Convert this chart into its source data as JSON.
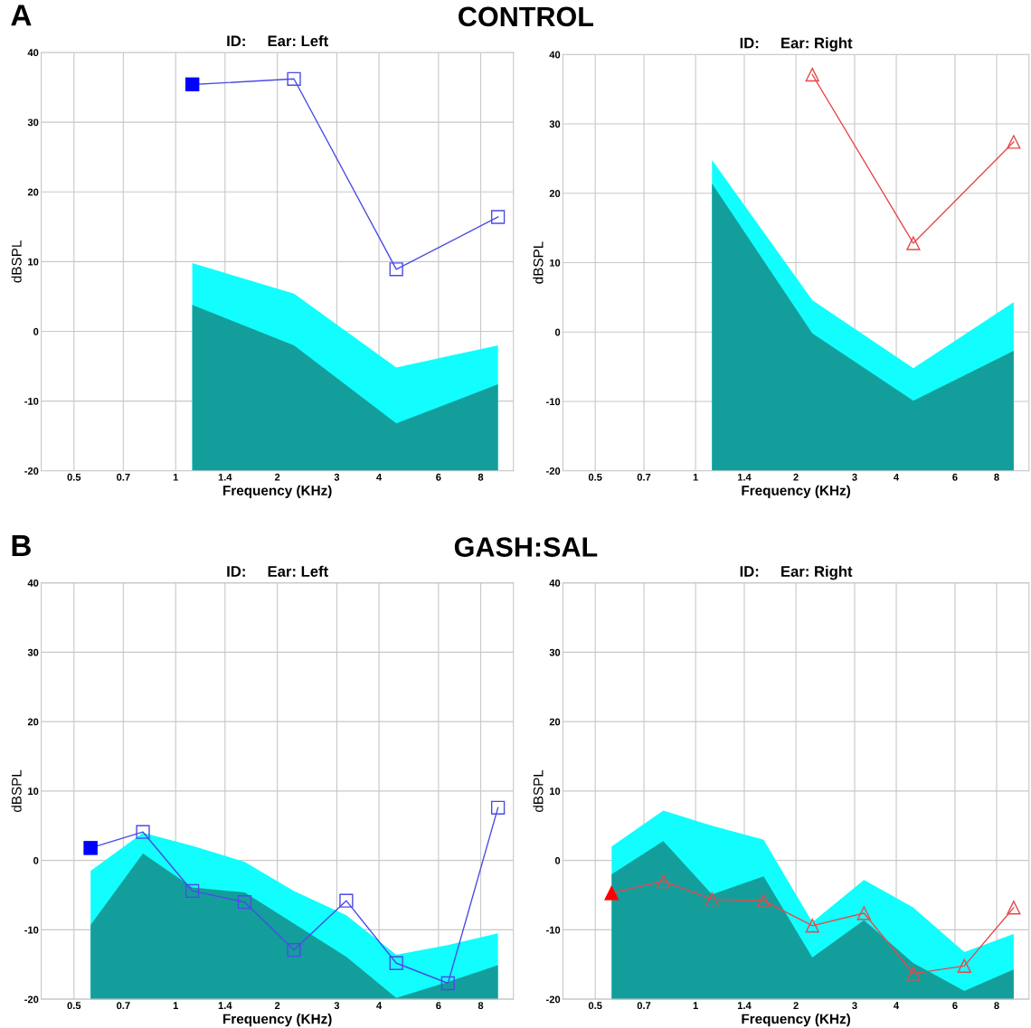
{
  "chart_data": [
    {
      "type": "area",
      "title": "ID:     Ear: Left",
      "xlabel": "Frequency (KHz)",
      "ylabel": "dBSPL",
      "annotations": [
        "A",
        "CONTROL"
      ],
      "x": [
        1.12,
        2.24,
        4.5,
        9
      ],
      "log": "x",
      "grid": true,
      "xlim": [
        0.4,
        10
      ],
      "xticks": [
        0.5,
        0.7,
        1,
        1.4,
        2,
        3,
        4,
        6,
        8
      ],
      "ylim": [
        -20,
        40
      ],
      "yticks": [
        -20,
        -10,
        0,
        10,
        20,
        30,
        40
      ],
      "series": [
        {
          "color": "#12fdfd",
          "values": [
            9.8,
            5.4,
            -5.2,
            -2
          ]
        },
        {
          "color": "#139e9c",
          "values": [
            3.8,
            -2,
            -13.2,
            -7.6
          ]
        },
        {
          "type": "line",
          "color": "#4b4be6",
          "marker": "square",
          "values": [
            35.4,
            36.2,
            8.9,
            16.4
          ]
        },
        {
          "type": "scatter",
          "color": "#0000ff",
          "marker": "square",
          "values": [
            35.4,
            null,
            null,
            null
          ]
        }
      ]
    },
    {
      "type": "area",
      "title": "ID:     Ear: Right",
      "xlabel": "Frequency (KHz)",
      "ylabel": "dBSPL",
      "x": [
        1.12,
        2.24,
        4.5,
        9
      ],
      "log": "x",
      "grid": true,
      "xlim": [
        0.4,
        10
      ],
      "xticks": [
        0.5,
        0.7,
        1,
        1.4,
        2,
        3,
        4,
        6,
        8
      ],
      "ylim": [
        -20,
        40
      ],
      "yticks": [
        -20,
        -10,
        0,
        10,
        20,
        30,
        40
      ],
      "series": [
        {
          "color": "#12fdfd",
          "values": [
            24.8,
            4.6,
            -5.2,
            4.3
          ]
        },
        {
          "color": "#139e9c",
          "values": [
            21.4,
            -0.2,
            -9.9,
            -2.7
          ]
        },
        {
          "type": "line",
          "color": "#e8484a",
          "marker": "triangle",
          "values": [
            null,
            37.1,
            12.8,
            27.4
          ]
        }
      ]
    },
    {
      "type": "area",
      "title": "ID:     Ear: Left",
      "xlabel": "Frequency (KHz)",
      "ylabel": "dBSPL",
      "annotations": [
        "B",
        "GASH:SAL"
      ],
      "x": [
        0.56,
        0.8,
        1.12,
        1.6,
        2.24,
        3.2,
        4.5,
        6.4,
        9
      ],
      "log": "x",
      "grid": true,
      "xlim": [
        0.4,
        10
      ],
      "xticks": [
        0.5,
        0.7,
        1,
        1.4,
        2,
        3,
        4,
        6,
        8
      ],
      "ylim": [
        -20,
        40
      ],
      "yticks": [
        -20,
        -10,
        0,
        10,
        20,
        30,
        40
      ],
      "series": [
        {
          "color": "#12fdfd",
          "values": [
            -1.5,
            4.0,
            2.1,
            -0.2,
            -4.4,
            -7.9,
            -13.6,
            -12.2,
            -10.5
          ]
        },
        {
          "color": "#139e9c",
          "values": [
            -9.3,
            1.0,
            -3.9,
            -4.6,
            -9.1,
            -13.9,
            -19.8,
            -17.5,
            -15.1
          ]
        },
        {
          "type": "line",
          "color": "#4b4be6",
          "marker": "square",
          "values": [
            1.8,
            4.1,
            -4.4,
            -6.0,
            -12.9,
            -5.8,
            -14.8,
            -17.7,
            7.6
          ]
        },
        {
          "type": "scatter",
          "color": "#0000ff",
          "marker": "square",
          "values": [
            1.8,
            null,
            null,
            null,
            null,
            null,
            null,
            null,
            null
          ]
        }
      ]
    },
    {
      "type": "area",
      "title": "ID:     Ear: Right",
      "xlabel": "Frequency (KHz)",
      "ylabel": "dBSPL",
      "x": [
        0.56,
        0.8,
        1.12,
        1.6,
        2.24,
        3.2,
        4.5,
        6.4,
        9
      ],
      "log": "x",
      "grid": true,
      "xlim": [
        0.4,
        10
      ],
      "xticks": [
        0.5,
        0.7,
        1,
        1.4,
        2,
        3,
        4,
        6,
        8
      ],
      "ylim": [
        -20,
        40
      ],
      "yticks": [
        -20,
        -10,
        0,
        10,
        20,
        30,
        40
      ],
      "series": [
        {
          "color": "#12fdfd",
          "values": [
            2.0,
            7.2,
            5.0,
            3.0,
            -8.9,
            -2.8,
            -6.8,
            -13.2,
            -10.6
          ]
        },
        {
          "color": "#139e9c",
          "values": [
            -2.0,
            2.8,
            -4.9,
            -2.3,
            -14.0,
            -8.6,
            -14.8,
            -18.8,
            -15.7
          ]
        },
        {
          "type": "line",
          "color": "#e8484a",
          "marker": "triangle",
          "values": [
            -4.7,
            -3.0,
            -5.6,
            -5.8,
            -9.4,
            -7.6,
            -16.3,
            -15.2,
            -6.8
          ]
        },
        {
          "type": "scatter",
          "color": "#ff0000",
          "marker": "triangle",
          "values": [
            -4.7,
            null,
            null,
            null,
            null,
            null,
            null,
            null,
            null
          ]
        }
      ]
    }
  ]
}
